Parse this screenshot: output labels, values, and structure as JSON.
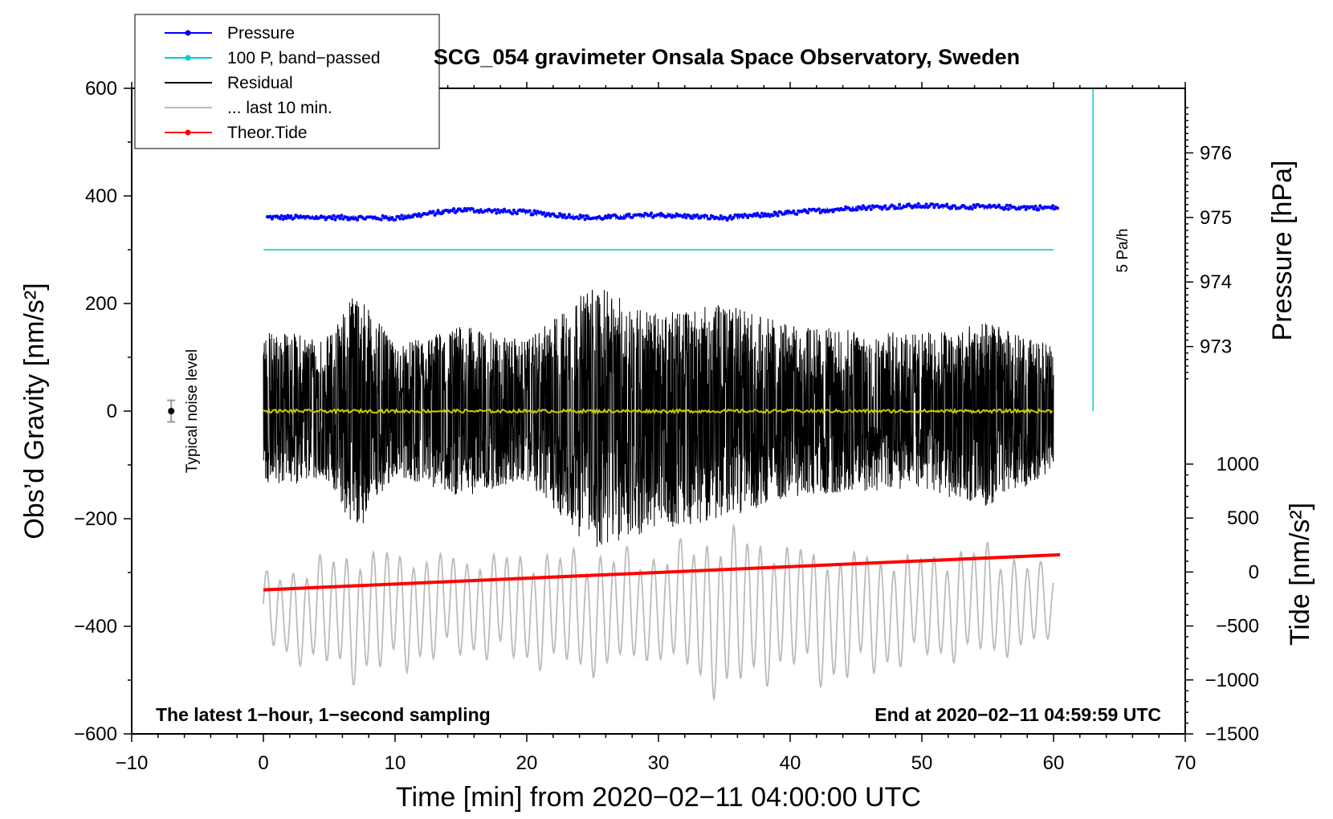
{
  "chart_data": {
    "type": "line",
    "title": "SCG_054 gravimeter Onsala Space Observatory, Sweden",
    "xlabel": "Time [min] from 2020−02−11 04:00:00 UTC",
    "ylabel_left": "Obs’d Gravity [nm/s²]",
    "ylabel_right_top": "Pressure [hPa]",
    "ylabel_right_bottom": "Tide [nm/s²]",
    "xlim": [
      -10,
      70
    ],
    "ylim_left": [
      -600,
      600
    ],
    "x_ticks": [
      {
        "v": -10,
        "label": "−10"
      },
      {
        "v": 0,
        "label": "0"
      },
      {
        "v": 10,
        "label": "10"
      },
      {
        "v": 20,
        "label": "20"
      },
      {
        "v": 30,
        "label": "30"
      },
      {
        "v": 40,
        "label": "40"
      },
      {
        "v": 50,
        "label": "50"
      },
      {
        "v": 60,
        "label": "60"
      },
      {
        "v": 70,
        "label": "70"
      }
    ],
    "y_left_ticks": [
      {
        "v": 600,
        "label": "600"
      },
      {
        "v": 400,
        "label": "400"
      },
      {
        "v": 200,
        "label": "200"
      },
      {
        "v": 0,
        "label": "0"
      },
      {
        "v": -200,
        "label": "−200"
      },
      {
        "v": -400,
        "label": "−400"
      },
      {
        "v": -600,
        "label": "−600"
      }
    ],
    "pressure_axis": {
      "unit_at_left_zero": 972.0,
      "left_units_per_hpa": 120,
      "ticks": [
        {
          "v": 976,
          "label": "976"
        },
        {
          "v": 975,
          "label": "975"
        },
        {
          "v": 974,
          "label": "974"
        },
        {
          "v": 973,
          "label": "973"
        }
      ]
    },
    "tide_axis": {
      "range": [
        -1500,
        1000
      ],
      "ticks": [
        {
          "v": 1000,
          "label": "1000"
        },
        {
          "v": 500,
          "label": "500"
        },
        {
          "v": 0,
          "label": "0"
        },
        {
          "v": -500,
          "label": "−500"
        },
        {
          "v": -1000,
          "label": "−1000"
        },
        {
          "v": -1500,
          "label": "−1500"
        }
      ]
    },
    "series": [
      {
        "name": "Pressure",
        "color": "#0000ff",
        "units": "hPa",
        "x": [
          0,
          5,
          10,
          15,
          20,
          25,
          30,
          35,
          40,
          45,
          50,
          55,
          60
        ],
        "values": [
          975.0,
          975.0,
          974.99,
          975.12,
          975.08,
          974.99,
          975.04,
          974.99,
          975.07,
          975.15,
          975.18,
          975.16,
          975.15
        ]
      },
      {
        "name": "100 P, band−passed",
        "color": "#00cccc",
        "units": "nm/s²",
        "x": [
          0,
          60
        ],
        "values": [
          300,
          300
        ]
      },
      {
        "name": "Residual",
        "color": "#000000",
        "units": "nm/s²",
        "x": [
          0,
          5,
          7,
          10,
          15,
          20,
          25,
          30,
          35,
          40,
          45,
          50,
          55,
          60
        ],
        "envelope_max": [
          150,
          140,
          230,
          120,
          160,
          130,
          235,
          180,
          200,
          160,
          150,
          145,
          165,
          120
        ],
        "envelope_min": [
          -140,
          -130,
          -230,
          -120,
          -160,
          -130,
          -260,
          -220,
          -200,
          -160,
          -150,
          -145,
          -180,
          -110
        ],
        "smoothed_color": "#cccc00",
        "smoothed_values": [
          0,
          0,
          0,
          0,
          0,
          0,
          0,
          0,
          0,
          0,
          0,
          0,
          0,
          0
        ]
      },
      {
        "name": "... last 10 min.",
        "color": "#bbbbbb",
        "units": "nm/s²",
        "x": [
          0,
          7,
          15,
          25,
          30,
          35,
          40,
          43,
          50,
          55,
          60
        ],
        "envelope_max": [
          -300,
          -245,
          -260,
          -250,
          -255,
          -205,
          -240,
          -250,
          -260,
          -240,
          -290
        ],
        "envelope_min": [
          -450,
          -510,
          -460,
          -500,
          -470,
          -550,
          -490,
          -520,
          -470,
          -470,
          -440
        ]
      },
      {
        "name": "Theor.Tide",
        "color": "#ff0000",
        "units": "nm/s² (tide axis)",
        "x": [
          0,
          60.5
        ],
        "values": [
          -165,
          160
        ]
      }
    ],
    "noise_level": {
      "label": "Typical noise level",
      "x": -7,
      "y": 0,
      "err": 20
    },
    "rate_label": "5 Pa/h",
    "notes": {
      "left": "The latest 1−hour, 1−second sampling",
      "right": "End at 2020−02−11 04:59:59 UTC"
    },
    "legend": [
      {
        "label": "Pressure",
        "color": "#0000ff",
        "marker": true
      },
      {
        "label": "100 P, band−passed",
        "color": "#00cccc",
        "marker": true
      },
      {
        "label": "Residual",
        "color": "#000000",
        "marker": false
      },
      {
        "label": "... last 10 min.",
        "color": "#bbbbbb",
        "marker": false
      },
      {
        "label": "Theor.Tide",
        "color": "#ff0000",
        "marker": true
      }
    ],
    "legend_position": "top-left"
  }
}
